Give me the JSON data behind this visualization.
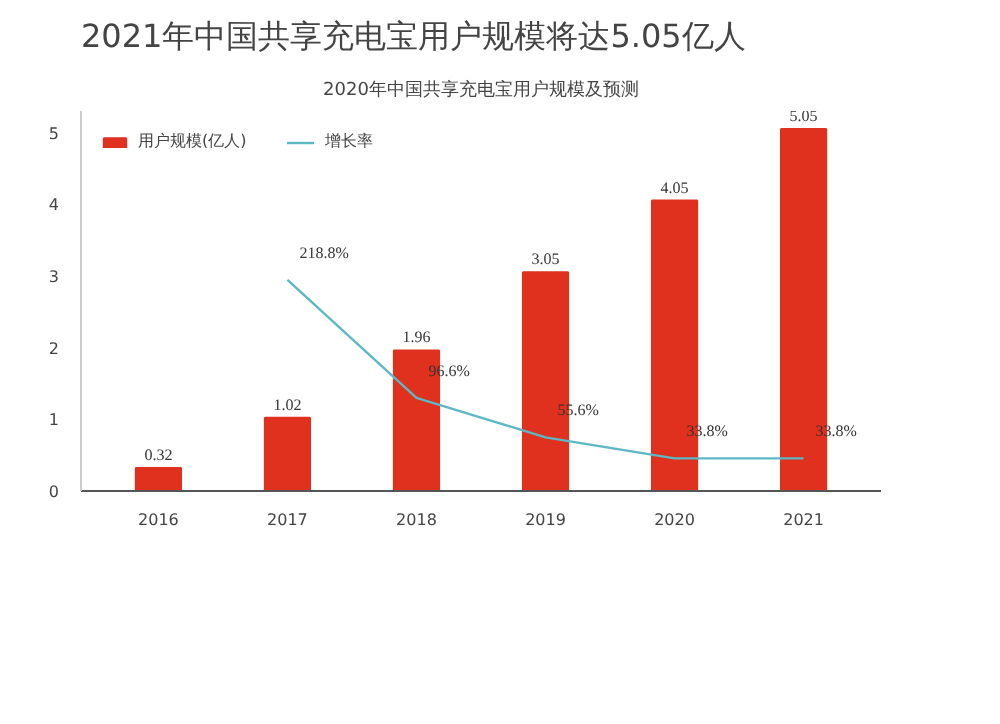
{
  "chart_data": {
    "type": "bar",
    "title": "2021年中国共享充电宝用户规模将达5.05亿人",
    "subtitle": "2020年中国共享充电宝用户规模及预测",
    "categories": [
      "2016",
      "2017",
      "2018",
      "2019",
      "2020",
      "2021"
    ],
    "series": [
      {
        "name": "用户规模(亿人)",
        "color": "#e0301e",
        "values": [
          0.32,
          1.02,
          1.96,
          3.05,
          4.05,
          5.05
        ],
        "data_labels": true
      },
      {
        "name": "增长率",
        "type": "line",
        "axis": "y2",
        "color": "#5bb8c4",
        "values": [
          null,
          218.8,
          96.6,
          55.6,
          33.8,
          33.8
        ],
        "value_labels": [
          null,
          "218.8%",
          "96.6%",
          "55.6%",
          "33.8%",
          "33.8%"
        ]
      }
    ],
    "ylim": [
      0,
      5.3
    ],
    "yticks": [
      0,
      1,
      2,
      3,
      4,
      5
    ],
    "grid": false,
    "legend": "top left",
    "marker": "none",
    "line_style": "solid"
  }
}
